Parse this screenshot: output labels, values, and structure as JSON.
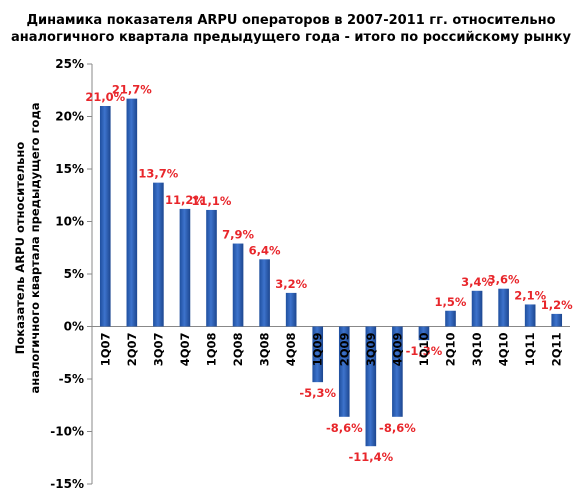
{
  "chart_data": {
    "type": "bar",
    "title_lines": [
      "Динамика показателя ARPU операторов в 2007-2011 гг. относительно",
      "аналогичного квартала предыдущего года - итого по российскому рынку"
    ],
    "ylabel_lines": [
      "Показатель ARPU относительно",
      "аналогичного квартала предыдущего года"
    ],
    "xlabel": "",
    "categories": [
      "1Q07",
      "2Q07",
      "3Q07",
      "4Q07",
      "1Q08",
      "2Q08",
      "3Q08",
      "4Q08",
      "1Q09",
      "2Q09",
      "3Q09",
      "4Q09",
      "1Q10",
      "2Q10",
      "3Q10",
      "4Q10",
      "1Q11",
      "2Q11"
    ],
    "values": [
      21.0,
      21.7,
      13.7,
      11.2,
      11.1,
      7.9,
      6.4,
      3.2,
      -5.3,
      -8.6,
      -11.4,
      -8.6,
      -1.3,
      1.5,
      3.4,
      3.6,
      2.1,
      1.2
    ],
    "data_labels": [
      "21,0%",
      "21,7%",
      "13,7%",
      "11,2%",
      "11,1%",
      "7,9%",
      "6,4%",
      "3,2%",
      "-5,3%",
      "-8,6%",
      "-11,4%",
      "-8,6%",
      "-1,3%",
      "1,5%",
      "3,4%",
      "3,6%",
      "2,1%",
      "1,2%"
    ],
    "yticks": [
      25,
      20,
      15,
      10,
      5,
      0,
      -5,
      -10,
      -15
    ],
    "ytick_labels": [
      "25%",
      "20%",
      "15%",
      "10%",
      "5%",
      "0%",
      "-5%",
      "-10%",
      "-15%"
    ],
    "ylim": [
      -15,
      25
    ],
    "grid": false,
    "legend": "none",
    "bar_color": "#2f63b8",
    "label_color": "#e8262b",
    "axis_color": "#888888"
  }
}
